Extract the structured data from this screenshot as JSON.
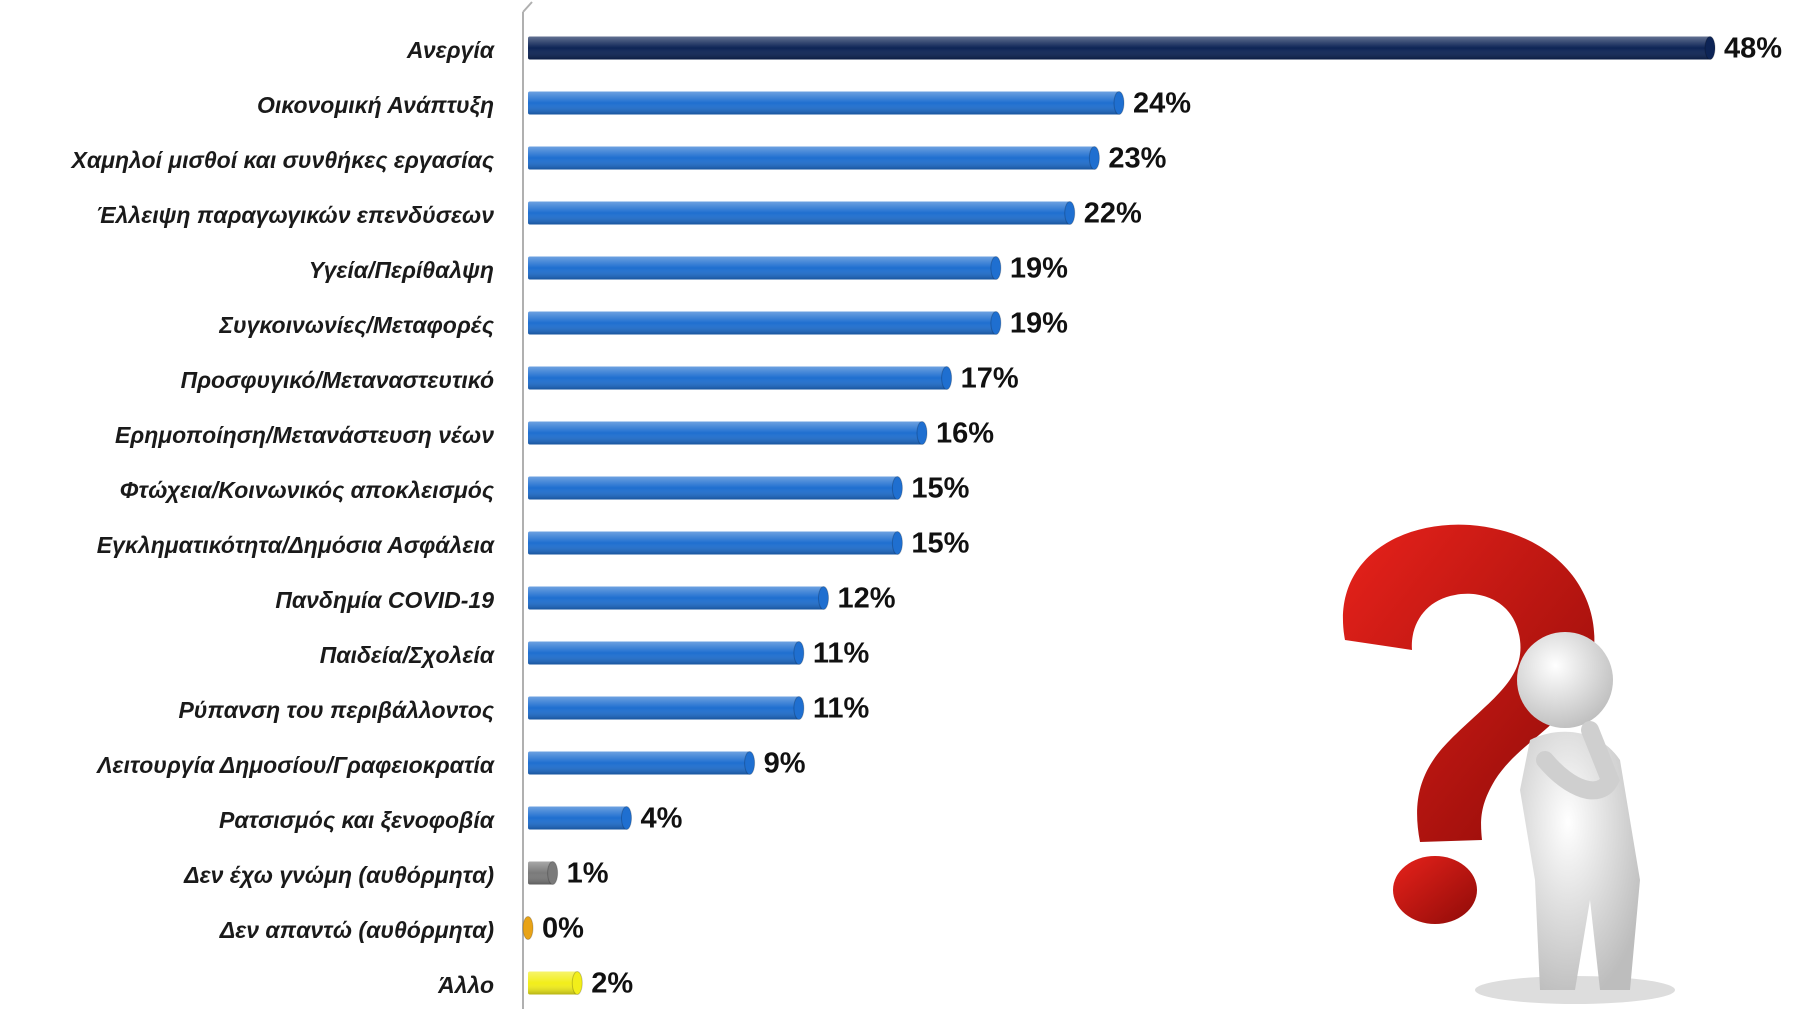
{
  "chart_data": {
    "type": "bar",
    "orientation": "horizontal",
    "categories": [
      "Ανεργία",
      "Οικονομική Ανάπτυξη",
      "Χαμηλοί μισθοί και συνθήκες εργασίας",
      "Έλλειψη παραγωγικών επενδύσεων",
      "Υγεία/Περίθαλψη",
      "Συγκοινωνίες/Μεταφορές",
      "Προσφυγικό/Μεταναστευτικό",
      "Ερημοποίηση/Μετανάστευση νέων",
      "Φτώχεια/Κοινωνικός αποκλεισμός",
      "Εγκληματικότητα/Δημόσια Ασφάλεια",
      "Πανδημία COVID-19",
      "Παιδεία/Σχολεία",
      "Ρύπανση του περιβάλλοντος",
      "Λειτουργία Δημοσίου/Γραφειοκρατία",
      "Ρατσισμός και ξενοφοβία",
      "Δεν έχω γνώμη (αυθόρμητα)",
      "Δεν απαντώ (αυθόρμητα)",
      "Άλλο"
    ],
    "values": [
      48,
      24,
      23,
      22,
      19,
      19,
      17,
      16,
      15,
      15,
      12,
      11,
      11,
      9,
      4,
      1,
      0,
      2
    ],
    "value_labels": [
      "48%",
      "24%",
      "23%",
      "22%",
      "19%",
      "19%",
      "17%",
      "16%",
      "15%",
      "15%",
      "12%",
      "11%",
      "11%",
      "9%",
      "4%",
      "1%",
      "0%",
      "2%"
    ],
    "colors": [
      "#0d2456",
      "#1f6fd0",
      "#1f6fd0",
      "#1f6fd0",
      "#1f6fd0",
      "#1f6fd0",
      "#1f6fd0",
      "#1f6fd0",
      "#1f6fd0",
      "#1f6fd0",
      "#1f6fd0",
      "#1f6fd0",
      "#1f6fd0",
      "#1f6fd0",
      "#1f6fd0",
      "#7a7a7a",
      "#e8a317",
      "#f2ee1a"
    ]
  }
}
